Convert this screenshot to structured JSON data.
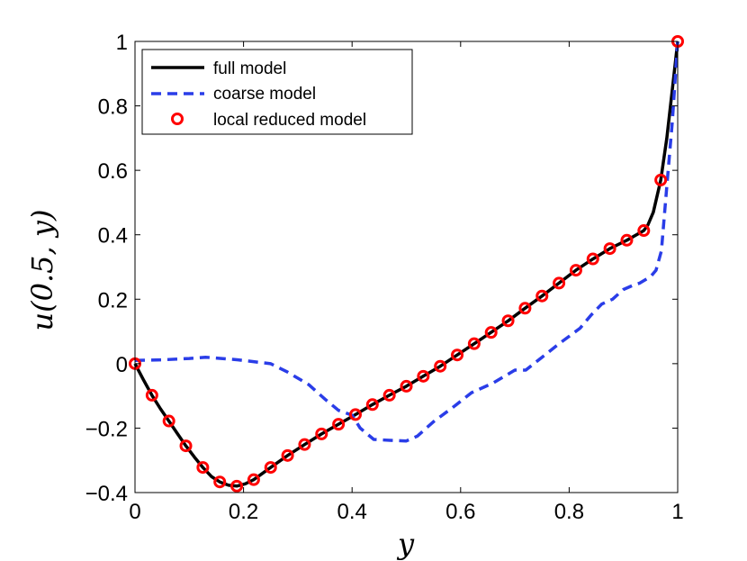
{
  "chart_data": {
    "type": "line",
    "title": "",
    "xlabel": "y",
    "ylabel": "u(0.5, y)",
    "xlim": [
      0,
      1
    ],
    "ylim": [
      -0.4,
      1
    ],
    "xticks": [
      0,
      0.2,
      0.4,
      0.6,
      0.8,
      1
    ],
    "xtick_labels": [
      "0",
      "0.2",
      "0.4",
      "0.6",
      "0.8",
      "1"
    ],
    "yticks": [
      -0.4,
      -0.2,
      0,
      0.2,
      0.4,
      0.6,
      0.8,
      1
    ],
    "ytick_labels": [
      "−0.4",
      "−0.2",
      "0",
      "0.2",
      "0.4",
      "0.6",
      "0.8",
      "1"
    ],
    "grid": false,
    "legend_position": "top-left",
    "series": [
      {
        "name": "full model",
        "style": "solid-line",
        "color": "#000000",
        "x": [
          0,
          0.0156,
          0.03125,
          0.0469,
          0.0625,
          0.0781,
          0.09375,
          0.1094,
          0.125,
          0.1406,
          0.15625,
          0.1719,
          0.1875,
          0.2031,
          0.21875,
          0.25,
          0.28125,
          0.3125,
          0.34375,
          0.375,
          0.40625,
          0.4375,
          0.46875,
          0.5,
          0.53125,
          0.5625,
          0.59375,
          0.625,
          0.65625,
          0.6875,
          0.71875,
          0.75,
          0.78125,
          0.8125,
          0.84375,
          0.875,
          0.90625,
          0.9375,
          0.945,
          0.955,
          0.96875,
          0.98,
          0.99,
          1.0
        ],
        "y": [
          0,
          -0.05,
          -0.098,
          -0.14,
          -0.178,
          -0.217,
          -0.255,
          -0.29,
          -0.322,
          -0.35,
          -0.367,
          -0.377,
          -0.38,
          -0.373,
          -0.36,
          -0.322,
          -0.285,
          -0.251,
          -0.218,
          -0.188,
          -0.158,
          -0.127,
          -0.098,
          -0.07,
          -0.039,
          -0.008,
          0.027,
          0.062,
          0.097,
          0.133,
          0.172,
          0.21,
          0.25,
          0.29,
          0.325,
          0.357,
          0.383,
          0.413,
          0.43,
          0.47,
          0.57,
          0.7,
          0.85,
          1.0
        ]
      },
      {
        "name": "coarse model",
        "style": "dashed-line",
        "color": "#2a3de8",
        "x": [
          0,
          0.05,
          0.1,
          0.13,
          0.19,
          0.25,
          0.28,
          0.32,
          0.35,
          0.375,
          0.4,
          0.415,
          0.44,
          0.47,
          0.5,
          0.52,
          0.55,
          0.59,
          0.62,
          0.66,
          0.7,
          0.72,
          0.75,
          0.78,
          0.82,
          0.84,
          0.86,
          0.88,
          0.9,
          0.92,
          0.93,
          0.95,
          0.96,
          0.97,
          0.98,
          0.99,
          1.0
        ],
        "y": [
          0.01,
          0.012,
          0.016,
          0.02,
          0.012,
          0.0,
          -0.025,
          -0.065,
          -0.11,
          -0.145,
          -0.16,
          -0.2,
          -0.235,
          -0.238,
          -0.24,
          -0.225,
          -0.18,
          -0.13,
          -0.09,
          -0.06,
          -0.02,
          -0.02,
          0.02,
          0.06,
          0.11,
          0.15,
          0.185,
          0.2,
          0.23,
          0.245,
          0.25,
          0.27,
          0.29,
          0.35,
          0.55,
          0.75,
          1.0
        ]
      },
      {
        "name": "local reduced model",
        "style": "circle-markers",
        "color": "#ff0000",
        "x": [
          0,
          0.03125,
          0.0625,
          0.09375,
          0.125,
          0.15625,
          0.1875,
          0.21875,
          0.25,
          0.28125,
          0.3125,
          0.34375,
          0.375,
          0.40625,
          0.4375,
          0.46875,
          0.5,
          0.53125,
          0.5625,
          0.59375,
          0.625,
          0.65625,
          0.6875,
          0.71875,
          0.75,
          0.78125,
          0.8125,
          0.84375,
          0.875,
          0.90625,
          0.9375,
          0.96875,
          1.0
        ],
        "y": [
          0,
          -0.098,
          -0.178,
          -0.255,
          -0.322,
          -0.367,
          -0.38,
          -0.36,
          -0.322,
          -0.285,
          -0.251,
          -0.218,
          -0.188,
          -0.158,
          -0.127,
          -0.098,
          -0.07,
          -0.039,
          -0.008,
          0.027,
          0.062,
          0.097,
          0.133,
          0.172,
          0.21,
          0.25,
          0.29,
          0.325,
          0.357,
          0.383,
          0.413,
          0.57,
          1.0
        ]
      }
    ]
  }
}
